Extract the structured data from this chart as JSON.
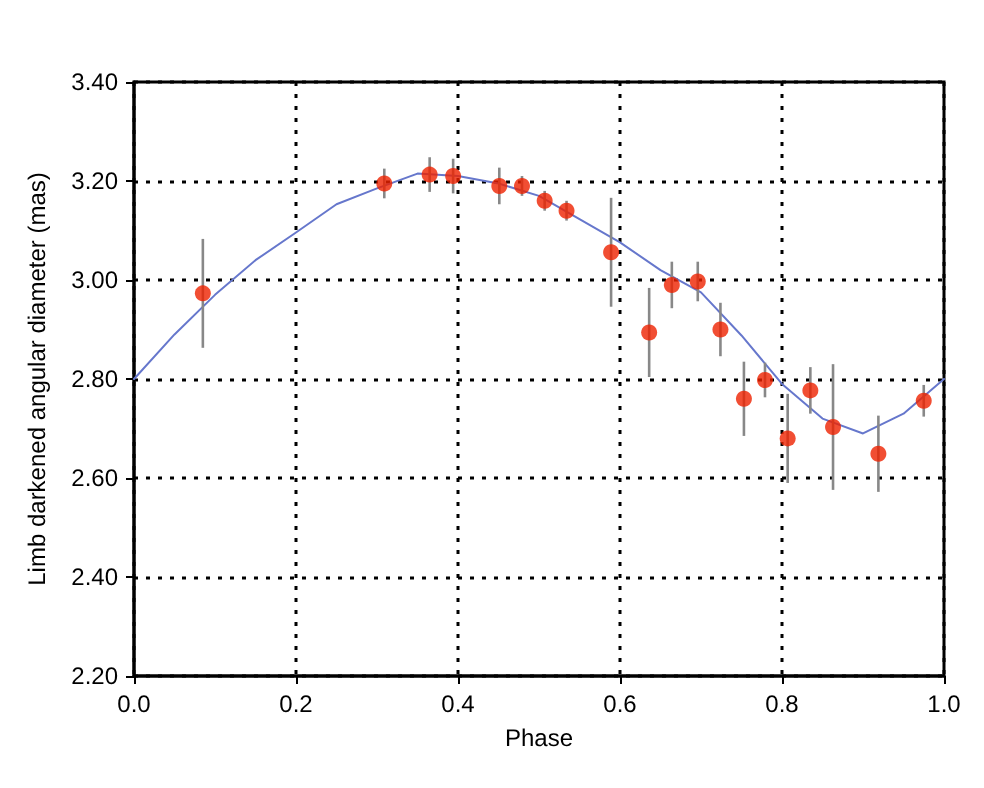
{
  "chart_data": {
    "type": "scatter",
    "xlabel": "Phase",
    "ylabel": "Limb darkened angular diameter (mas)",
    "xlim": [
      0,
      1
    ],
    "ylim": [
      2.2,
      3.4
    ],
    "xticks": [
      {
        "value": 0,
        "label": "0.0"
      },
      {
        "value": 0.2,
        "label": "0.2"
      },
      {
        "value": 0.4,
        "label": "0.4"
      },
      {
        "value": 0.6,
        "label": "0.6"
      },
      {
        "value": 0.8,
        "label": "0.8"
      },
      {
        "value": 1,
        "label": "1.0"
      }
    ],
    "yticks": [
      {
        "value": 2.2,
        "label": "2.20"
      },
      {
        "value": 2.4,
        "label": "2.40"
      },
      {
        "value": 2.6,
        "label": "2.60"
      },
      {
        "value": 2.8,
        "label": "2.80"
      },
      {
        "value": 3.0,
        "label": "3.00"
      },
      {
        "value": 3.2,
        "label": "3.20"
      },
      {
        "value": 3.4,
        "label": "3.40"
      }
    ],
    "grid": true,
    "series": [
      {
        "type": "line",
        "color": "#6677cc",
        "marker": "none",
        "line_style": "solid",
        "x": [
          0,
          0.05,
          0.1,
          0.15,
          0.2,
          0.25,
          0.3,
          0.35,
          0.4,
          0.45,
          0.5,
          0.55,
          0.6,
          0.65,
          0.7,
          0.75,
          0.8,
          0.85,
          0.9,
          0.95,
          1.0
        ],
        "values": [
          2.8,
          2.89,
          2.97,
          3.04,
          3.096,
          3.153,
          3.185,
          3.215,
          3.21,
          3.195,
          3.17,
          3.123,
          3.076,
          3.02,
          2.975,
          2.888,
          2.79,
          2.72,
          2.69,
          2.73,
          2.8
        ]
      },
      {
        "color": "#ee2200",
        "marker": "circle",
        "x": [
          0.085,
          0.309,
          0.365,
          0.394,
          0.451,
          0.479,
          0.507,
          0.534,
          0.589,
          0.636,
          0.664,
          0.696,
          0.724,
          0.753,
          0.779,
          0.807,
          0.835,
          0.863,
          0.919,
          0.975
        ],
        "values": [
          2.973,
          3.195,
          3.213,
          3.21,
          3.19,
          3.19,
          3.16,
          3.14,
          3.056,
          2.894,
          2.99,
          2.997,
          2.9,
          2.76,
          2.798,
          2.68,
          2.777,
          2.703,
          2.649,
          2.756
        ],
        "errors": [
          0.11,
          0.03,
          0.035,
          0.035,
          0.037,
          0.02,
          0.02,
          0.02,
          0.11,
          0.09,
          0.047,
          0.04,
          0.054,
          0.075,
          0.035,
          0.09,
          0.047,
          0.127,
          0.077,
          0.032
        ]
      }
    ]
  }
}
